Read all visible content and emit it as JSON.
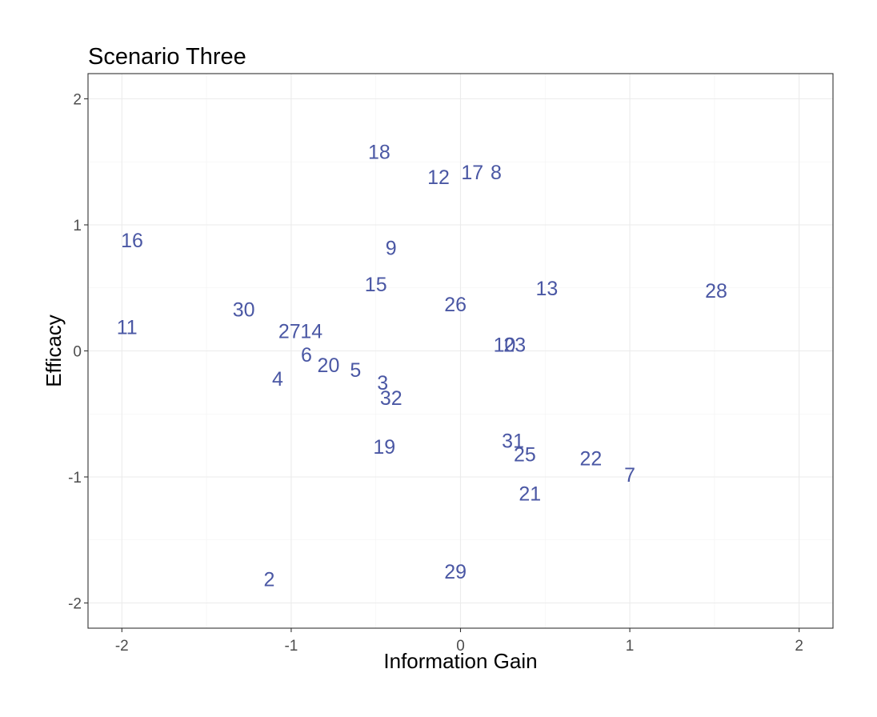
{
  "chart_data": {
    "type": "scatter",
    "title": "Scenario Three",
    "xlabel": "Information Gain",
    "ylabel": "Efficacy",
    "xlim": [
      -2.2,
      2.2
    ],
    "ylim": [
      -2.2,
      2.2
    ],
    "xticks": [
      -2,
      -1,
      0,
      1,
      2
    ],
    "yticks": [
      -2,
      -1,
      0,
      1,
      2
    ],
    "grid": true,
    "label_color": "#4A57A4",
    "points": [
      {
        "label": "18",
        "x": -0.48,
        "y": 1.58
      },
      {
        "label": "12",
        "x": -0.13,
        "y": 1.38
      },
      {
        "label": "17",
        "x": 0.07,
        "y": 1.42
      },
      {
        "label": "8",
        "x": 0.21,
        "y": 1.42
      },
      {
        "label": "16",
        "x": -1.94,
        "y": 0.88
      },
      {
        "label": "9",
        "x": -0.41,
        "y": 0.82
      },
      {
        "label": "15",
        "x": -0.5,
        "y": 0.53
      },
      {
        "label": "13",
        "x": 0.51,
        "y": 0.5
      },
      {
        "label": "28",
        "x": 1.51,
        "y": 0.48
      },
      {
        "label": "26",
        "x": -0.03,
        "y": 0.37
      },
      {
        "label": "30",
        "x": -1.28,
        "y": 0.33
      },
      {
        "label": "11",
        "x": -1.97,
        "y": 0.19
      },
      {
        "label": "27",
        "x": -1.01,
        "y": 0.16
      },
      {
        "label": "14",
        "x": -0.88,
        "y": 0.16
      },
      {
        "label": "10",
        "x": 0.26,
        "y": 0.05
      },
      {
        "label": "23",
        "x": 0.32,
        "y": 0.05
      },
      {
        "label": "6",
        "x": -0.91,
        "y": -0.03
      },
      {
        "label": "20",
        "x": -0.78,
        "y": -0.11
      },
      {
        "label": "5",
        "x": -0.62,
        "y": -0.15
      },
      {
        "label": "4",
        "x": -1.08,
        "y": -0.22
      },
      {
        "label": "3",
        "x": -0.46,
        "y": -0.25
      },
      {
        "label": "32",
        "x": -0.41,
        "y": -0.37
      },
      {
        "label": "19",
        "x": -0.45,
        "y": -0.76
      },
      {
        "label": "31",
        "x": 0.31,
        "y": -0.71
      },
      {
        "label": "25",
        "x": 0.38,
        "y": -0.82
      },
      {
        "label": "22",
        "x": 0.77,
        "y": -0.85
      },
      {
        "label": "7",
        "x": 1.0,
        "y": -0.98
      },
      {
        "label": "21",
        "x": 0.41,
        "y": -1.13
      },
      {
        "label": "29",
        "x": -0.03,
        "y": -1.75
      },
      {
        "label": "2",
        "x": -1.13,
        "y": -1.81
      }
    ]
  }
}
